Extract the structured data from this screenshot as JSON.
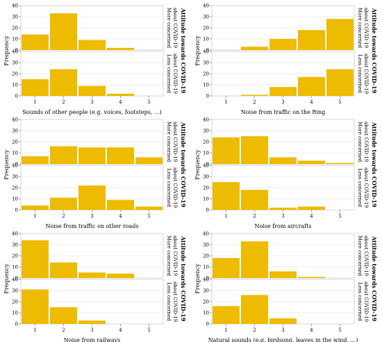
{
  "shared": {
    "ylabel": "Frequency",
    "strip_label": "Attitude towards COVID-19",
    "row_labels": [
      [
        "More concerned",
        "about COVID-19"
      ],
      [
        "Less concerned",
        "about COVID-19"
      ]
    ],
    "bar_color": "#EDBB00",
    "y_ticks": [
      0,
      10,
      20,
      30,
      40
    ],
    "x_ticks": [
      1,
      2,
      3,
      4,
      5
    ]
  },
  "chart_data": [
    {
      "type": "bar",
      "xlabel": "Sounds of other people (e.g. voices, footsteps, ...)",
      "categories": [
        1,
        2,
        3,
        4,
        5
      ],
      "ylim": [
        0,
        40
      ],
      "series": [
        {
          "name": "More concerned about COVID-19",
          "values": [
            14,
            33,
            9,
            2,
            0
          ]
        },
        {
          "name": "Less concerned about COVID-19",
          "values": [
            15,
            24,
            9,
            2,
            0
          ]
        }
      ]
    },
    {
      "type": "bar",
      "xlabel": "Noise from traffic on the Ring",
      "categories": [
        1,
        2,
        3,
        4,
        5
      ],
      "ylim": [
        0,
        40
      ],
      "series": [
        {
          "name": "More concerned about COVID-19",
          "values": [
            0,
            3,
            10,
            18,
            28
          ]
        },
        {
          "name": "Less concerned about COVID-19",
          "values": [
            0,
            1,
            8,
            17,
            24
          ]
        }
      ]
    },
    {
      "type": "bar",
      "xlabel": "Noise from traffic on other roads",
      "categories": [
        1,
        2,
        3,
        4,
        5
      ],
      "ylim": [
        0,
        40
      ],
      "series": [
        {
          "name": "More concerned about COVID-19",
          "values": [
            7,
            16,
            15,
            15,
            6
          ]
        },
        {
          "name": "Less concerned about COVID-19",
          "values": [
            4,
            11,
            22,
            9,
            3
          ]
        }
      ]
    },
    {
      "type": "bar",
      "xlabel": "Noise from aircrafts",
      "categories": [
        1,
        2,
        3,
        4,
        5
      ],
      "ylim": [
        0,
        40
      ],
      "series": [
        {
          "name": "More concerned about COVID-19",
          "values": [
            24,
            25,
            6,
            3,
            1
          ]
        },
        {
          "name": "Less concerned about COVID-19",
          "values": [
            25,
            18,
            2,
            3,
            0
          ]
        }
      ]
    },
    {
      "type": "bar",
      "xlabel": "Noise from railways",
      "categories": [
        1,
        2,
        3,
        4,
        5
      ],
      "ylim": [
        0,
        40
      ],
      "series": [
        {
          "name": "More concerned about COVID-19",
          "values": [
            34,
            14,
            5,
            4,
            0
          ]
        },
        {
          "name": "Less concerned about COVID-19",
          "values": [
            31,
            15,
            3,
            0,
            0
          ]
        }
      ]
    },
    {
      "type": "bar",
      "xlabel": "Natural sounds (e.g. birdsong, leaves in the wind, ...)",
      "categories": [
        1,
        2,
        3,
        4,
        5
      ],
      "ylim": [
        0,
        40
      ],
      "series": [
        {
          "name": "More concerned about COVID-19",
          "values": [
            18,
            33,
            6,
            1,
            0
          ]
        },
        {
          "name": "Less concerned about COVID-19",
          "values": [
            16,
            26,
            5,
            0,
            0
          ]
        }
      ]
    }
  ]
}
